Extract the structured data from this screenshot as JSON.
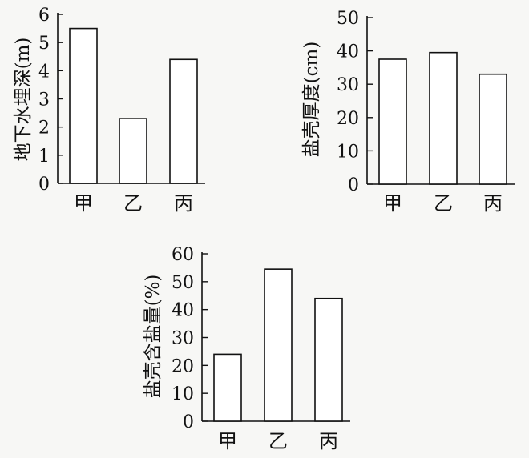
{
  "chart_data": [
    {
      "type": "bar",
      "title": "",
      "xlabel": "",
      "ylabel": "地下水埋深(m)",
      "categories": [
        "甲",
        "乙",
        "丙"
      ],
      "values": [
        5.5,
        2.3,
        4.4
      ],
      "ylim": [
        0,
        6
      ],
      "yticks": [
        0,
        1,
        2,
        3,
        4,
        5,
        6
      ],
      "grid": false
    },
    {
      "type": "bar",
      "title": "",
      "xlabel": "",
      "ylabel": "盐壳厚度(cm)",
      "categories": [
        "甲",
        "乙",
        "丙"
      ],
      "values": [
        37.5,
        39.5,
        33
      ],
      "ylim": [
        0,
        50
      ],
      "yticks": [
        0,
        10,
        20,
        30,
        40,
        50
      ],
      "grid": false
    },
    {
      "type": "bar",
      "title": "",
      "xlabel": "",
      "ylabel": "盐壳含盐量(%)",
      "categories": [
        "甲",
        "乙",
        "丙"
      ],
      "values": [
        24,
        54.5,
        44
      ],
      "ylim": [
        0,
        60
      ],
      "yticks": [
        0,
        10,
        20,
        30,
        40,
        50,
        60
      ],
      "grid": false
    }
  ],
  "colors": {
    "axis": "#111111",
    "bar_fill": "#ffffff",
    "bar_stroke": "#111111"
  }
}
